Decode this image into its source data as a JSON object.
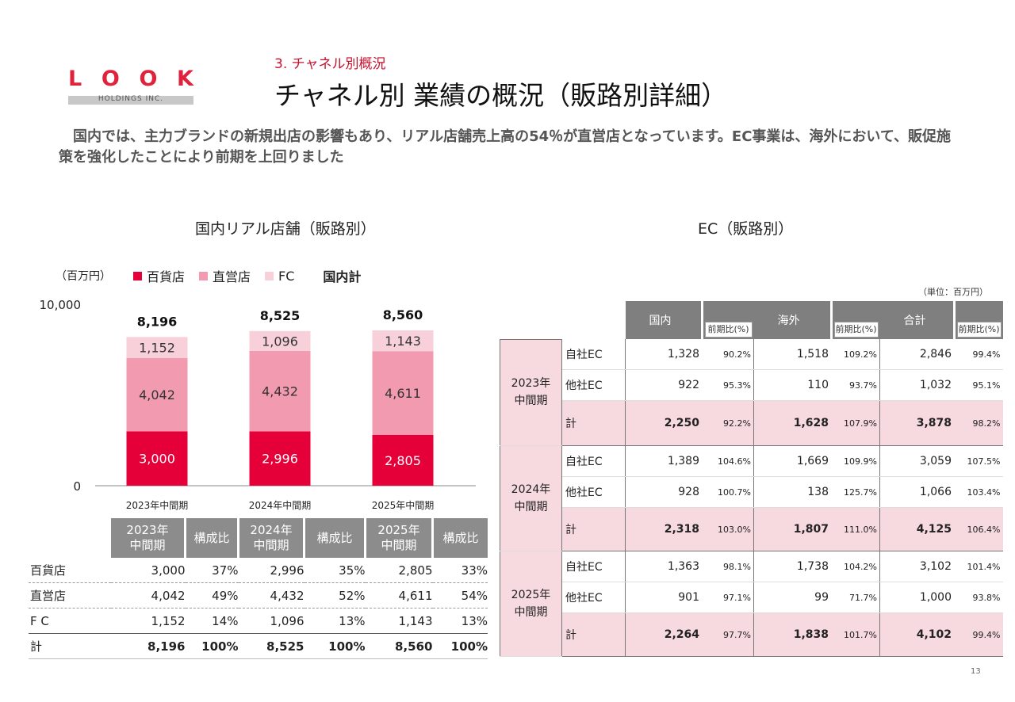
{
  "logo": {
    "letters": [
      "L",
      "O",
      "O",
      "K"
    ],
    "subtitle": "HOLDINGS INC."
  },
  "section_label": "3. チャネル別概況",
  "title": "チャネル別 業績の概況（販路別詳細）",
  "lead": "　国内では、主力ブランドの新規出店の影響もあり、リアル店舗売上高の54％が直営店となっています。EC事業は、海外において、販促施策を強化したことにより前期を上回りました",
  "colors": {
    "department": "#e6003a",
    "direct": "#f29bb0",
    "fc": "#f8d0da",
    "accent": "#c8102e",
    "header_gray": "#8c8c8c",
    "pink_row": "#f7d9e0"
  },
  "chart_data": {
    "type": "bar",
    "stacked": true,
    "title": "国内リアル店舗（販路別）",
    "unit": "（百万円）",
    "categories": [
      "2023年中間期",
      "2024年中間期",
      "2025年中間期"
    ],
    "series": [
      {
        "name": "百貨店",
        "values": [
          3000,
          2996,
          2805
        ]
      },
      {
        "name": "直営店",
        "values": [
          4042,
          4432,
          4611
        ]
      },
      {
        "name": "FC",
        "values": [
          1152,
          1096,
          1143
        ]
      }
    ],
    "totals_label": "国内計",
    "totals": [
      8196,
      8525,
      8560
    ],
    "totals_text": [
      "8,196",
      "8,525",
      "8,560"
    ],
    "value_labels": [
      [
        "3,000",
        "2,996",
        "2,805"
      ],
      [
        "4,042",
        "4,432",
        "4,611"
      ],
      [
        "1,152",
        "1,096",
        "1,143"
      ]
    ],
    "ylim": [
      0,
      10000
    ],
    "yticks": [
      "0",
      "10,000"
    ]
  },
  "left_table": {
    "headers": [
      "2023年\n中間期",
      "構成比",
      "2024年\n中間期",
      "構成比",
      "2025年\n中間期",
      "構成比"
    ],
    "rows": [
      {
        "label": "百貨店",
        "cells": [
          "3,000",
          "37%",
          "2,996",
          "35%",
          "2,805",
          "33%"
        ]
      },
      {
        "label": "直営店",
        "cells": [
          "4,042",
          "49%",
          "4,432",
          "52%",
          "4,611",
          "54%"
        ]
      },
      {
        "label": "F C",
        "cells": [
          "1,152",
          "14%",
          "1,096",
          "13%",
          "1,143",
          "13%"
        ]
      }
    ],
    "total": {
      "label": "計",
      "cells": [
        "8,196",
        "100%",
        "8,525",
        "100%",
        "8,560",
        "100%"
      ]
    }
  },
  "right_table": {
    "title": "EC（販路別）",
    "unit": "（単位：百万円）",
    "headers": [
      "国内",
      "海外",
      "合計"
    ],
    "subheader": "前期比(%)",
    "groups": [
      {
        "period": "2023年\n中間期",
        "rows": [
          {
            "label": "自社EC",
            "cells": [
              "1,328",
              "90.2%",
              "1,518",
              "109.2%",
              "2,846",
              "99.4%"
            ]
          },
          {
            "label": "他社EC",
            "cells": [
              "922",
              "95.3%",
              "110",
              "93.7%",
              "1,032",
              "95.1%"
            ]
          },
          {
            "label": "計",
            "cells": [
              "2,250",
              "92.2%",
              "1,628",
              "107.9%",
              "3,878",
              "98.2%"
            ]
          }
        ]
      },
      {
        "period": "2024年\n中間期",
        "rows": [
          {
            "label": "自社EC",
            "cells": [
              "1,389",
              "104.6%",
              "1,669",
              "109.9%",
              "3,059",
              "107.5%"
            ]
          },
          {
            "label": "他社EC",
            "cells": [
              "928",
              "100.7%",
              "138",
              "125.7%",
              "1,066",
              "103.4%"
            ]
          },
          {
            "label": "計",
            "cells": [
              "2,318",
              "103.0%",
              "1,807",
              "111.0%",
              "4,125",
              "106.4%"
            ]
          }
        ]
      },
      {
        "period": "2025年\n中間期",
        "rows": [
          {
            "label": "自社EC",
            "cells": [
              "1,363",
              "98.1%",
              "1,738",
              "104.2%",
              "3,102",
              "101.4%"
            ]
          },
          {
            "label": "他社EC",
            "cells": [
              "901",
              "97.1%",
              "99",
              "71.7%",
              "1,000",
              "93.8%"
            ]
          },
          {
            "label": "計",
            "cells": [
              "2,264",
              "97.7%",
              "1,838",
              "101.7%",
              "4,102",
              "99.4%"
            ]
          }
        ]
      }
    ]
  },
  "page_number": "13"
}
